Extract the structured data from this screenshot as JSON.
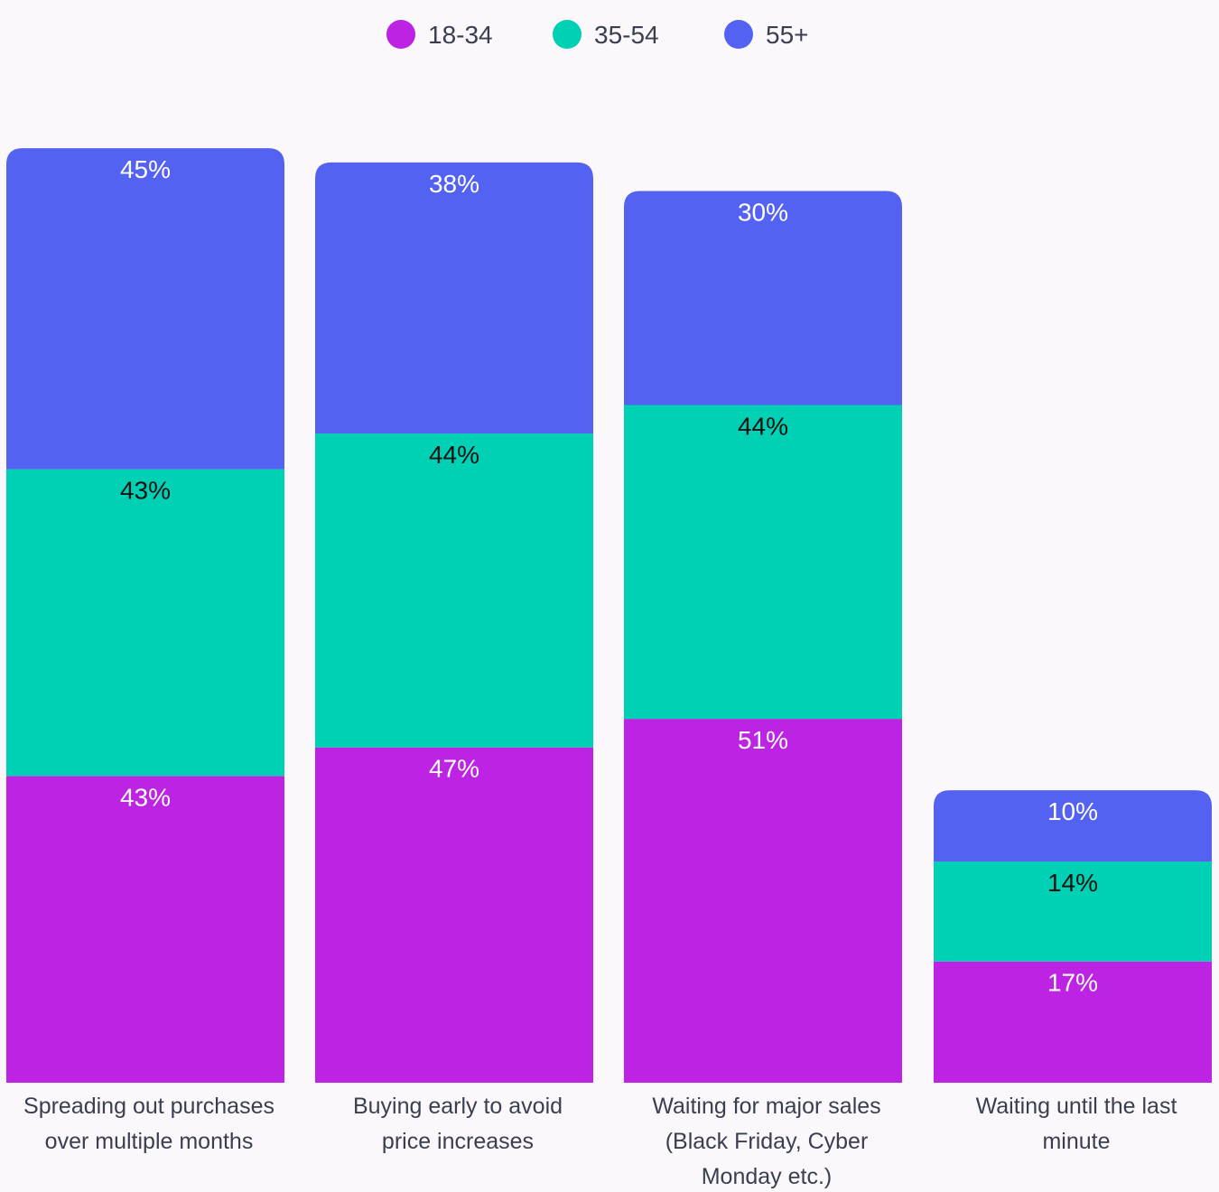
{
  "colors": {
    "18-34": "#bd23e2",
    "35-54": "#00d0b4",
    "55+": "#5462f2",
    "background": "#fbf8fc",
    "label_dark": "#111111",
    "label_light": "#ffffff",
    "axis_text": "#3a3f4f"
  },
  "chart_data": {
    "type": "bar",
    "stacked": true,
    "title": "",
    "xlabel": "",
    "ylabel": "",
    "ylim": [
      0,
      131
    ],
    "grid": false,
    "legend_position": "top-center",
    "categories": [
      [
        "Spreading out purchases",
        "over multiple months"
      ],
      [
        "Buying early to avoid",
        "price increases"
      ],
      [
        "Waiting for major sales",
        "(Black Friday, Cyber",
        "Monday etc.)"
      ],
      [
        "Waiting until the last",
        "minute"
      ]
    ],
    "series": [
      {
        "name": "18-34",
        "values": [
          43,
          47,
          51,
          17
        ],
        "labels": [
          "43%",
          "47%",
          "51%",
          "17%"
        ]
      },
      {
        "name": "35-54",
        "values": [
          43,
          44,
          44,
          14
        ],
        "labels": [
          "43%",
          "44%",
          "44%",
          "14%"
        ]
      },
      {
        "name": "55+",
        "values": [
          45,
          38,
          30,
          10
        ],
        "labels": [
          "45%",
          "38%",
          "30%",
          "10%"
        ]
      }
    ]
  }
}
